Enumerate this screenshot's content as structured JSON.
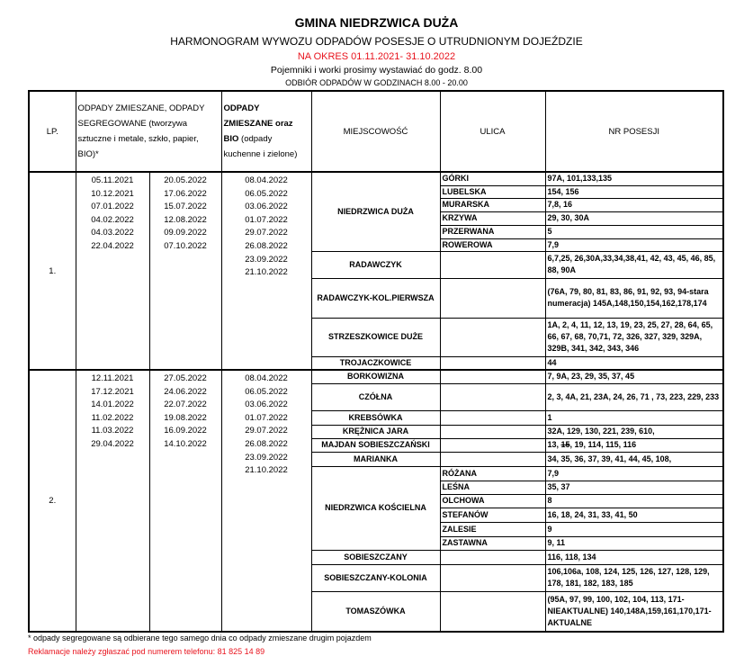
{
  "header": {
    "title": "GMINA NIEDRZWICA DUŻA",
    "subtitle": "HARMONOGRAM WYWOZU ODPADÓW POSESJE O UTRUDNIONYM DOJEŹDZIE",
    "period": "NA OKRES 01.11.2021- 31.10.2022",
    "note1": "Pojemniki i worki prosimy wystawiać do godz. 8.00",
    "note2": "ODBIÓR ODPADÓW W GODZINACH 8.00 - 20.00"
  },
  "columns": {
    "lp": "LP.",
    "mixed": " ODPADY ZMIESZANE, ODPADY SEGREGOWANE (tworzywa sztuczne i metale, szkło, papier, BIO)*",
    "bio_a": "ODPADY ZMIESZANE oraz BIO",
    "bio_b": "(odpady kuchenne i zielone)",
    "locality": "MIEJSCOWOŚĆ",
    "street": "ULICA",
    "numbers": "NR POSESJI"
  },
  "groups": [
    {
      "lp": "1.",
      "dates_a": [
        "05.11.2021",
        "10.12.2021",
        "07.01.2022",
        "04.02.2022",
        "04.03.2022",
        "22.04.2022"
      ],
      "dates_b": [
        "20.05.2022",
        "17.06.2022",
        "15.07.2022",
        "12.08.2022",
        "09.09.2022",
        "07.10.2022"
      ],
      "dates_bio": [
        "08.04.2022",
        "06.05.2022",
        "03.06.2022",
        "01.07.2022",
        "29.07.2022",
        "26.08.2022",
        "23.09.2022",
        "21.10.2022"
      ],
      "localities": [
        {
          "name": "NIEDRZWICA DUŻA",
          "streets": [
            {
              "street": "GÓRKI",
              "nr": "97A, 101,133,135"
            },
            {
              "street": "LUBELSKA",
              "nr": " 154, 156"
            },
            {
              "street": "MURARSKA",
              "nr": "7,8, 16"
            },
            {
              "street": "KRZYWA",
              "nr": "29, 30, 30A"
            },
            {
              "street": "PRZERWANA",
              "nr": "5"
            },
            {
              "street": "ROWEROWA",
              "nr": "7,9"
            }
          ]
        },
        {
          "name": "RADAWCZYK",
          "streets": [
            {
              "street": "",
              "nr": "6,7,25, 26,30A,33,34,38,41, 42, 43, 45, 46, 85, 88, 90A"
            }
          ]
        },
        {
          "name": "RADAWCZYK-KOL.PIERWSZA",
          "streets": [
            {
              "street": "",
              "nr": "(76A, 79, 80, 81, 83, 86, 91, 92, 93, 94-stara numeracja) 145A,148,150,154,162,178,174"
            }
          ]
        },
        {
          "name": "STRZESZKOWICE DUŻE",
          "streets": [
            {
              "street": "",
              "nr": "1A, 2, 4, 11, 12, 13, 19, 23, 25, 27, 28, 64, 65, 66, 67, 68, 70,71, 72, 326, 327, 329, 329A, 329B, 341, 342, 343, 346"
            }
          ]
        },
        {
          "name": "TROJACZKOWICE",
          "streets": [
            {
              "street": "",
              "nr": "44"
            }
          ]
        }
      ]
    },
    {
      "lp": "2.",
      "dates_a": [
        "12.11.2021",
        "17.12.2021",
        "14.01.2022",
        "11.02.2022",
        "11.03.2022",
        "29.04.2022"
      ],
      "dates_b": [
        "27.05.2022",
        "24.06.2022",
        "22.07.2022",
        "19.08.2022",
        "16.09.2022",
        "14.10.2022"
      ],
      "dates_bio": [
        "08.04.2022",
        "06.05.2022",
        "03.06.2022",
        "01.07.2022",
        "29.07.2022",
        "26.08.2022",
        "23.09.2022",
        "21.10.2022"
      ],
      "localities": [
        {
          "name": "BORKOWIZNA",
          "streets": [
            {
              "street": "",
              "nr": "7, 9A, 23, 29, 35, 37, 45"
            }
          ]
        },
        {
          "name": "CZÓŁNA",
          "streets": [
            {
              "street": "",
              "nr": "2, 3, 4A, 21, 23A, 24, 26, 71 , 73, 223, 229, 233"
            }
          ]
        },
        {
          "name": "KREBSÓWKA",
          "streets": [
            {
              "street": "",
              "nr": "1"
            }
          ]
        },
        {
          "name": "KRĘŻNICA JARA",
          "streets": [
            {
              "street": "",
              "nr": "32A, 129, 130, 221, 239, 610,"
            }
          ]
        },
        {
          "name": "MAJDAN SOBIESZCZAŃSKI",
          "streets": [
            {
              "street": "",
              "nr": "13, ",
              "nr_struck": "15",
              "nr_after": ", 19, 114, 115, 116"
            }
          ]
        },
        {
          "name": "MARIANKA",
          "streets": [
            {
              "street": "",
              "nr": "34, 35, 36, 37, 39, 41, 44, 45, 108,"
            }
          ]
        },
        {
          "name": "NIEDRZWICA KOŚCIELNA",
          "streets": [
            {
              "street": "RÓŻANA",
              "nr": "7,9"
            },
            {
              "street": "LEŚNA",
              "nr": "35, 37"
            },
            {
              "street": "OLCHOWA",
              "nr": "8"
            },
            {
              "street": "STEFANÓW",
              "nr": "16, 18, 24, 31, 33, 41, 50"
            },
            {
              "street": "ZALESIE",
              "nr": "9"
            },
            {
              "street": "ZASTAWNA",
              "nr": "9, 11"
            }
          ]
        },
        {
          "name": "SOBIESZCZANY",
          "streets": [
            {
              "street": "",
              "nr": "116, 118, 134"
            }
          ]
        },
        {
          "name": "SOBIESZCZANY-KOLONIA",
          "streets": [
            {
              "street": "",
              "nr": "106,106a, 108, 124, 125, 126, 127, 128, 129, 178, 181, 182, 183, 185"
            }
          ]
        },
        {
          "name": "TOMASZÓWKA",
          "streets": [
            {
              "street": "",
              "nr": "(95A, 97, 99, 100, 102, 104, 113, 171-NIEAKTUALNE) 140,148A,159,161,170,171-AKTUALNE"
            }
          ]
        }
      ]
    }
  ],
  "footer": {
    "note": "* odpady segregowane są odbierane tego samego dnia co odpady zmieszane drugim pojazdem",
    "complaints": "Reklamacje należy zgłaszać pod numerem telefonu: 81 825 14 89"
  },
  "colors": {
    "accent_red": "#e8141e",
    "text": "#000000"
  }
}
